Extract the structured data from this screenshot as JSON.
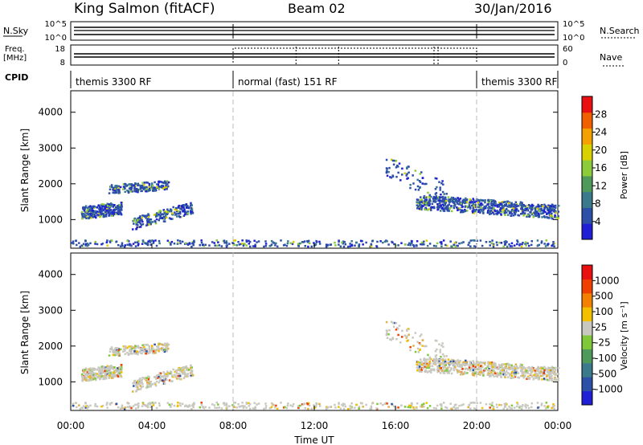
{
  "header": {
    "station": "King Salmon (fitACF)",
    "beam": "Beam 02",
    "date": "30/Jan/2016"
  },
  "strip": {
    "nsky_label": "N.Sky",
    "nsky_ticks": [
      "10^5",
      "10^0"
    ],
    "nsearch_label": "N.Search",
    "nsearch_ticks": [
      "10^5",
      "10^0"
    ],
    "freq_label_1": "Freq.",
    "freq_label_2": "[MHz]",
    "freq_ticks": [
      "18",
      "8"
    ],
    "nave_label": "Nave",
    "nave_ticks": [
      "60",
      "0"
    ],
    "cpid_label": "CPID",
    "modes": [
      {
        "label": "themis 3300 RF",
        "start_hour": 0,
        "end_hour": 8
      },
      {
        "label": "normal (fast) 151 RF",
        "start_hour": 8,
        "end_hour": 20
      },
      {
        "label": "themis 3300 RF",
        "start_hour": 20,
        "end_hour": 24
      }
    ]
  },
  "chart_data": [
    {
      "type": "heatmap",
      "name": "power",
      "ylabel": "Slant Range [km]",
      "ylim": [
        200,
        4600
      ],
      "xlim": [
        0,
        24
      ],
      "yticks": [
        1000,
        2000,
        3000,
        4000
      ],
      "colorbar_label": "Power [dB]",
      "colorbar_ticks": [
        "28",
        "24",
        "20",
        "16",
        "12",
        "8",
        "4"
      ],
      "colorbar_colors": [
        "#1f1fd6",
        "#2c4fa8",
        "#3a7a8c",
        "#4f9a5a",
        "#8ccc3a",
        "#d8d000",
        "#f3a000",
        "#f06000",
        "#e81010"
      ]
    },
    {
      "type": "heatmap",
      "name": "velocity",
      "ylabel": "Slant Range [km]",
      "xlabel": "Time UT",
      "ylim": [
        200,
        4600
      ],
      "xlim": [
        0,
        24
      ],
      "yticks": [
        1000,
        2000,
        3000,
        4000
      ],
      "xticks": [
        "00:00",
        "04:00",
        "08:00",
        "12:00",
        "16:00",
        "20:00",
        "00:00"
      ],
      "colorbar_label": "Velocity [m s⁻¹]",
      "colorbar_ticks": [
        "1000",
        "500",
        "100",
        "25",
        "-25",
        "-100",
        "-500",
        "-1000"
      ],
      "colorbar_colors": [
        "#1f1fd6",
        "#2c4fa8",
        "#3a7a8c",
        "#4f9a5a",
        "#7ec83a",
        "#c8c8c0",
        "#f3c000",
        "#f38000",
        "#f04000",
        "#e81010"
      ]
    }
  ],
  "scatter_regions": [
    {
      "t0": 0.5,
      "t1": 2.5,
      "r_center": 1250,
      "r_halfwidth": 180,
      "slope": 60,
      "density": 260
    },
    {
      "t0": 1.8,
      "t1": 4.8,
      "r_center": 1900,
      "r_halfwidth": 130,
      "slope": 40,
      "density": 200
    },
    {
      "t0": 3.0,
      "t1": 6.0,
      "r_center": 1100,
      "r_halfwidth": 170,
      "slope": 150,
      "density": 200
    },
    {
      "t0": 17.0,
      "t1": 24.0,
      "r_center": 1350,
      "r_halfwidth": 200,
      "slope": -40,
      "density": 700
    },
    {
      "t0": 15.5,
      "t1": 18.5,
      "r_center": 2100,
      "r_halfwidth": 300,
      "slope": -250,
      "density": 80
    },
    {
      "t0": 0.0,
      "t1": 24.0,
      "r_center": 330,
      "r_halfwidth": 90,
      "slope": 0,
      "density": 380
    }
  ]
}
